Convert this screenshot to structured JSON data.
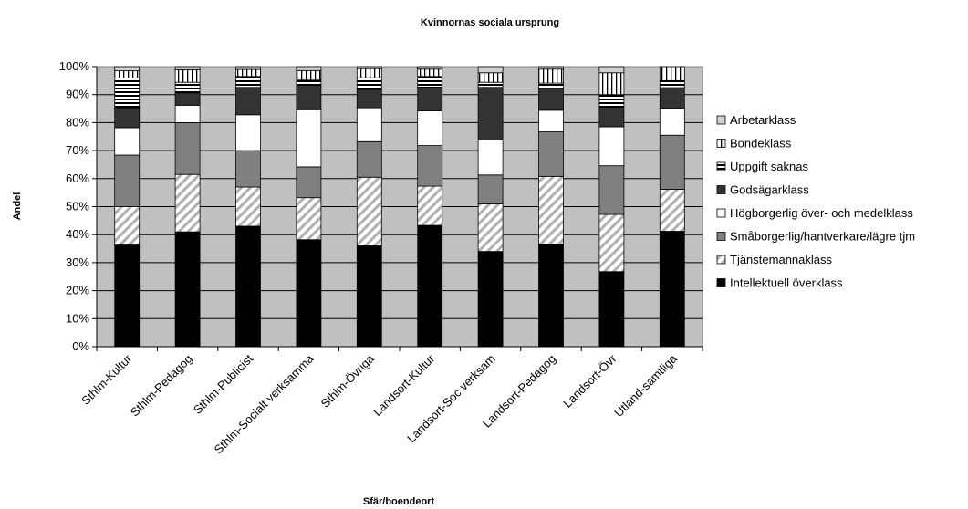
{
  "chart_data": {
    "type": "bar",
    "stacked": "percent",
    "title": "Kvinnornas sociala ursprung",
    "xlabel": "Sfär/boendeort",
    "ylabel": "Andel",
    "ylim": [
      0,
      100
    ],
    "y_ticks": [
      "0%",
      "10%",
      "20%",
      "30%",
      "40%",
      "50%",
      "60%",
      "70%",
      "80%",
      "90%",
      "100%"
    ],
    "grid": true,
    "legend_position": "right",
    "plot_background": "#c0c0c0",
    "categories": [
      "Sthlm-Kultur",
      "Sthlm-Pedagog",
      "Sthlm-Publicist",
      "Sthlm-Socialt verksamma",
      "Sthlm-Övriga",
      "Landsort-Kultur",
      "Landsort-Soc verksam",
      "Landsort-Pedagog",
      "Landsort-Övr",
      "Utland-samtliga"
    ],
    "series": [
      {
        "name": "Intellektuell överklass",
        "fill": "#000000",
        "pattern": "solid",
        "values": [
          36.3,
          41.0,
          43.0,
          38.2,
          36.0,
          43.3,
          34.0,
          36.6,
          26.8,
          41.2
        ]
      },
      {
        "name": "Tjänstemannaklass",
        "fill": "#ffffff",
        "pattern": "diagonal",
        "values": [
          13.7,
          20.5,
          14.0,
          15.0,
          24.5,
          14.0,
          17.0,
          24.2,
          20.4,
          15.0
        ]
      },
      {
        "name": "Småborgerlig/hantverkare/lägre tjm",
        "fill": "#808080",
        "pattern": "solid",
        "values": [
          18.4,
          18.5,
          13.0,
          11.0,
          12.7,
          14.5,
          10.3,
          15.9,
          17.4,
          19.3
        ]
      },
      {
        "name": "Högborgerlig över- och medelklass",
        "fill": "#ffffff",
        "pattern": "solid",
        "values": [
          9.8,
          6.2,
          12.8,
          20.4,
          12.1,
          12.4,
          12.5,
          7.7,
          13.9,
          9.7
        ]
      },
      {
        "name": "Godsägarklass",
        "fill": "#333333",
        "pattern": "solid",
        "values": [
          7.1,
          4.4,
          9.8,
          8.8,
          6.4,
          8.5,
          18.8,
          7.8,
          7.0,
          7.3
        ]
      },
      {
        "name": "Uppgift saknas",
        "fill": "#ffffff",
        "pattern": "horizontal",
        "values": [
          10.6,
          3.8,
          3.9,
          1.8,
          4.3,
          3.8,
          1.8,
          1.9,
          4.5,
          2.5
        ]
      },
      {
        "name": "Bondeklass",
        "fill": "#ffffff",
        "pattern": "vertical",
        "values": [
          2.6,
          4.5,
          2.5,
          3.4,
          3.3,
          2.6,
          3.4,
          5.0,
          7.8,
          5.0
        ]
      },
      {
        "name": "Arbetarklass",
        "fill": "#d0d0d0",
        "pattern": "solid",
        "values": [
          1.5,
          1.1,
          1.0,
          1.4,
          0.7,
          0.9,
          2.2,
          0.9,
          2.2,
          0.0
        ]
      }
    ]
  }
}
